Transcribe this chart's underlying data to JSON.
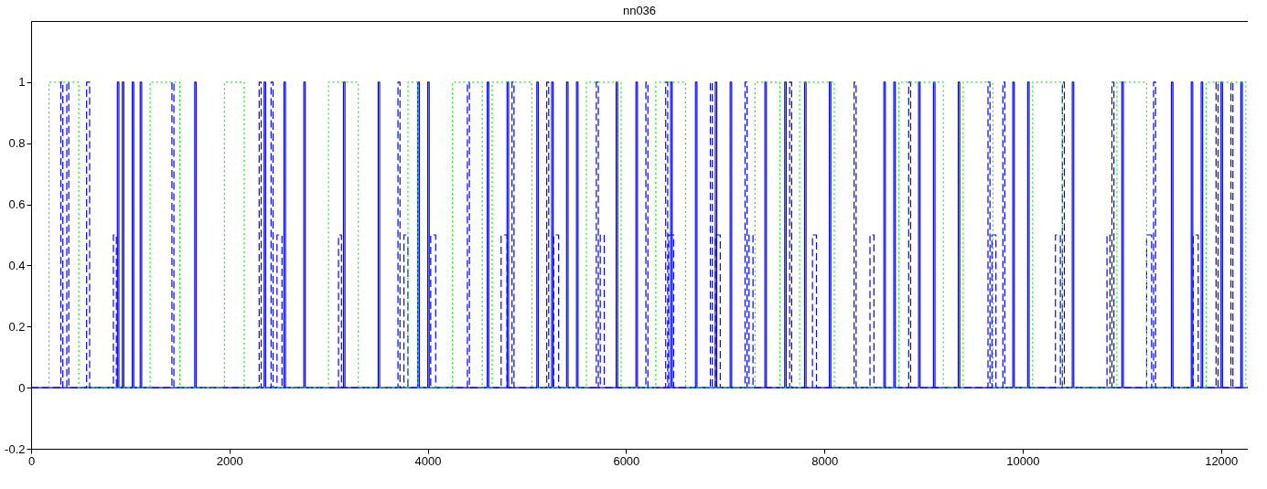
{
  "chart_data": {
    "type": "line",
    "title": "nn036",
    "xlim": [
      0,
      12270
    ],
    "ylim": [
      -0.2,
      1.2
    ],
    "xticks": [
      0,
      2000,
      4000,
      6000,
      8000,
      10000,
      12000
    ],
    "yticks": [
      -0.2,
      0,
      0.2,
      0.4,
      0.6,
      0.8,
      1
    ],
    "grid": false,
    "marker": "none",
    "series": [
      {
        "color": "#0000ff",
        "line_style": "solid",
        "x": [
          0,
          870,
          870,
          885,
          885,
          920,
          920,
          935,
          935,
          1020,
          1020,
          1035,
          1035,
          1100,
          1100,
          1115,
          1115,
          1650,
          1650,
          1665,
          1665,
          2350,
          2350,
          2365,
          2365,
          2550,
          2550,
          2565,
          2565,
          2750,
          2750,
          2765,
          2765,
          3150,
          3150,
          3165,
          3165,
          3500,
          3500,
          3515,
          3515,
          3900,
          3900,
          3915,
          3915,
          4000,
          4000,
          4015,
          4015,
          4600,
          4600,
          4615,
          4615,
          4800,
          4800,
          4815,
          4815,
          5100,
          5100,
          5115,
          5115,
          5250,
          5250,
          5265,
          5265,
          5400,
          5400,
          5415,
          5415,
          5500,
          5500,
          5515,
          5515,
          5900,
          5900,
          5915,
          5915,
          6100,
          6100,
          6115,
          6115,
          6450,
          6450,
          6465,
          6465,
          6700,
          6700,
          6715,
          6715,
          6900,
          6900,
          6915,
          6915,
          7050,
          7050,
          7065,
          7065,
          7400,
          7400,
          7415,
          7415,
          7600,
          7600,
          7615,
          7615,
          7800,
          7800,
          7815,
          7815,
          8050,
          8050,
          8065,
          8065,
          8600,
          8600,
          8615,
          8615,
          8700,
          8700,
          8715,
          8715,
          8950,
          8950,
          8965,
          8965,
          9100,
          9100,
          9115,
          9115,
          9350,
          9350,
          9365,
          9365,
          9900,
          9900,
          9915,
          9915,
          10050,
          10050,
          10065,
          10065,
          10500,
          10500,
          10515,
          10515,
          11000,
          11000,
          11015,
          11015,
          11500,
          11500,
          11515,
          11515,
          11700,
          11700,
          11715,
          11715,
          11800,
          11800,
          11815,
          11815,
          12000,
          12000,
          12015,
          12015,
          12200,
          12200,
          12215,
          12215,
          12270
        ],
        "values": [
          0,
          0,
          1,
          1,
          0,
          0,
          1,
          1,
          0,
          0,
          1,
          1,
          0,
          0,
          1,
          1,
          0,
          0,
          1,
          1,
          0,
          0,
          1,
          1,
          0,
          0,
          1,
          1,
          0,
          0,
          1,
          1,
          0,
          0,
          1,
          1,
          0,
          0,
          1,
          1,
          0,
          0,
          1,
          1,
          0,
          0,
          1,
          1,
          0,
          0,
          1,
          1,
          0,
          0,
          1,
          1,
          0,
          0,
          1,
          1,
          0,
          0,
          1,
          1,
          0,
          0,
          1,
          1,
          0,
          0,
          1,
          1,
          0,
          0,
          1,
          1,
          0,
          0,
          1,
          1,
          0,
          0,
          1,
          1,
          0,
          0,
          1,
          1,
          0,
          0,
          1,
          1,
          0,
          0,
          1,
          1,
          0,
          0,
          1,
          1,
          0,
          0,
          1,
          1,
          0,
          0,
          1,
          1,
          0,
          0,
          1,
          1,
          0,
          0,
          1,
          1,
          0,
          0,
          1,
          1,
          0,
          0,
          1,
          1,
          0,
          0,
          1,
          1,
          0,
          0,
          1,
          1,
          0,
          0,
          1,
          1,
          0,
          0,
          1,
          1,
          0,
          0,
          1,
          1,
          0,
          0,
          1,
          1,
          0,
          0,
          1,
          1,
          0,
          0,
          1,
          1,
          0,
          0,
          1,
          1,
          0,
          0,
          1,
          1,
          0,
          0,
          1,
          1,
          0,
          0
        ]
      },
      {
        "color": "#0000ff",
        "line_style": "dashed",
        "x": [
          0,
          300,
          300,
          320,
          320,
          360,
          360,
          380,
          380,
          560,
          560,
          590,
          590,
          830,
          830,
          860,
          860,
          1420,
          1420,
          1440,
          1440,
          2300,
          2300,
          2320,
          2320,
          2420,
          2420,
          2440,
          2440,
          2480,
          2480,
          2530,
          2530,
          3100,
          3100,
          3130,
          3130,
          3700,
          3700,
          3720,
          3720,
          3760,
          3760,
          3800,
          3800,
          4030,
          4030,
          4080,
          4080,
          4400,
          4400,
          4420,
          4420,
          4740,
          4740,
          4800,
          4800,
          4850,
          4850,
          4870,
          4870,
          5200,
          5200,
          5220,
          5220,
          5270,
          5270,
          5320,
          5320,
          5700,
          5700,
          5720,
          5720,
          5740,
          5740,
          5780,
          5780,
          6200,
          6200,
          6220,
          6220,
          6400,
          6400,
          6420,
          6420,
          6430,
          6430,
          6480,
          6480,
          6850,
          6850,
          6870,
          6870,
          6900,
          6900,
          6950,
          6950,
          7200,
          7200,
          7220,
          7220,
          7240,
          7240,
          7280,
          7280,
          7650,
          7650,
          7670,
          7670,
          7880,
          7880,
          7920,
          7920,
          8300,
          8300,
          8320,
          8320,
          8460,
          8460,
          8500,
          8500,
          8850,
          8850,
          8870,
          8870,
          9650,
          9650,
          9670,
          9670,
          9690,
          9690,
          9730,
          9730,
          9800,
          9800,
          9820,
          9820,
          10330,
          10330,
          10380,
          10380,
          10400,
          10400,
          10420,
          10420,
          10850,
          10850,
          10880,
          10880,
          10900,
          10900,
          10920,
          10920,
          11250,
          11250,
          11300,
          11300,
          11320,
          11320,
          11340,
          11340,
          11720,
          11720,
          11770,
          11770,
          11950,
          11950,
          11970,
          11970,
          12100,
          12100,
          12120,
          12120,
          12270
        ],
        "values": [
          0,
          0,
          1,
          1,
          0,
          0,
          1,
          1,
          0,
          0,
          1,
          1,
          0,
          0,
          0.5,
          0.5,
          0,
          0,
          1,
          1,
          0,
          0,
          1,
          1,
          0,
          0,
          1,
          1,
          0,
          0,
          0.5,
          0.5,
          0,
          0,
          0.5,
          0.5,
          0,
          0,
          1,
          1,
          0,
          0,
          0.5,
          0.5,
          0,
          0,
          0.5,
          0.5,
          0,
          0,
          1,
          1,
          0,
          0,
          0.5,
          0.5,
          0,
          0,
          1,
          1,
          0,
          0,
          1,
          1,
          0,
          0,
          0.5,
          0.5,
          0,
          0,
          1,
          1,
          0,
          0,
          0.5,
          0.5,
          0,
          0,
          1,
          1,
          0,
          0,
          1,
          1,
          0,
          0,
          0.5,
          0.5,
          0,
          0,
          1,
          1,
          0,
          0,
          0.5,
          0.5,
          0,
          0,
          1,
          1,
          0,
          0,
          0.5,
          0.5,
          0,
          0,
          1,
          1,
          0,
          0,
          0.5,
          0.5,
          0,
          0,
          1,
          1,
          0,
          0,
          0.5,
          0.5,
          0,
          0,
          1,
          1,
          0,
          0,
          1,
          1,
          0,
          0,
          0.5,
          0.5,
          0,
          0,
          1,
          1,
          0,
          0,
          0.5,
          0.5,
          0,
          0,
          1,
          1,
          0,
          0,
          0.5,
          0.5,
          0,
          0,
          1,
          1,
          0,
          0,
          0.5,
          0.5,
          0,
          0,
          1,
          1,
          0,
          0,
          0.5,
          0.5,
          0,
          0,
          1,
          1,
          0,
          0,
          1,
          1,
          0,
          0
        ]
      },
      {
        "color": "#00ff00",
        "line_style": "dotted",
        "x": [
          180,
          180,
          480,
          480,
          1200,
          1200,
          1500,
          1500,
          1950,
          1950,
          2150,
          2150,
          3000,
          3000,
          3300,
          3300,
          3800,
          3800,
          3900,
          3900,
          4250,
          4250,
          4550,
          4550,
          4650,
          4650,
          5050,
          5050,
          5600,
          5600,
          5950,
          5950,
          6300,
          6300,
          6600,
          6600,
          7300,
          7300,
          7550,
          7550,
          7750,
          7750,
          8100,
          8100,
          8750,
          8750,
          9200,
          9200,
          9400,
          9400,
          9700,
          9700,
          10100,
          10100,
          10400,
          10400,
          10950,
          10950,
          11250,
          11250,
          11850,
          11850,
          12250,
          12250,
          12270
        ],
        "values": [
          0,
          1,
          1,
          0,
          0,
          1,
          1,
          0,
          0,
          1,
          1,
          0,
          0,
          1,
          1,
          0,
          0,
          1,
          1,
          0,
          0,
          1,
          1,
          0,
          0,
          1,
          1,
          0,
          0,
          1,
          1,
          0,
          0,
          1,
          1,
          0,
          0,
          1,
          1,
          0,
          0,
          1,
          1,
          0,
          0,
          1,
          1,
          0,
          0,
          1,
          1,
          0,
          0,
          1,
          1,
          0,
          0,
          1,
          1,
          0,
          0,
          1,
          1,
          0,
          0
        ]
      }
    ]
  }
}
